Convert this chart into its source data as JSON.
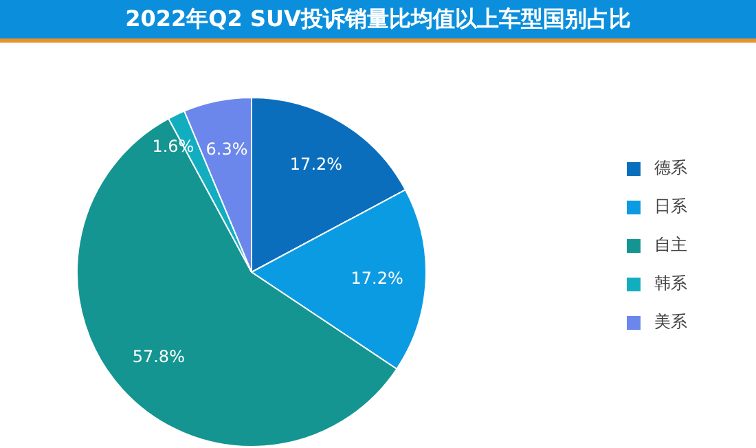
{
  "chart_data": {
    "type": "pie",
    "title": "2022年Q2 SUV投诉销量比均值以上车型国别占比",
    "categories": [
      "德系",
      "日系",
      "自主",
      "韩系",
      "美系"
    ],
    "values": [
      17.2,
      17.2,
      57.8,
      1.6,
      6.3
    ],
    "colors": [
      "#0a6ebd",
      "#0b9be3",
      "#149591",
      "#12aec0",
      "#6b87ec"
    ],
    "value_labels": [
      "17.2%",
      "17.2%",
      "57.8%",
      "1.6%",
      "6.3%"
    ],
    "legend": "right"
  }
}
